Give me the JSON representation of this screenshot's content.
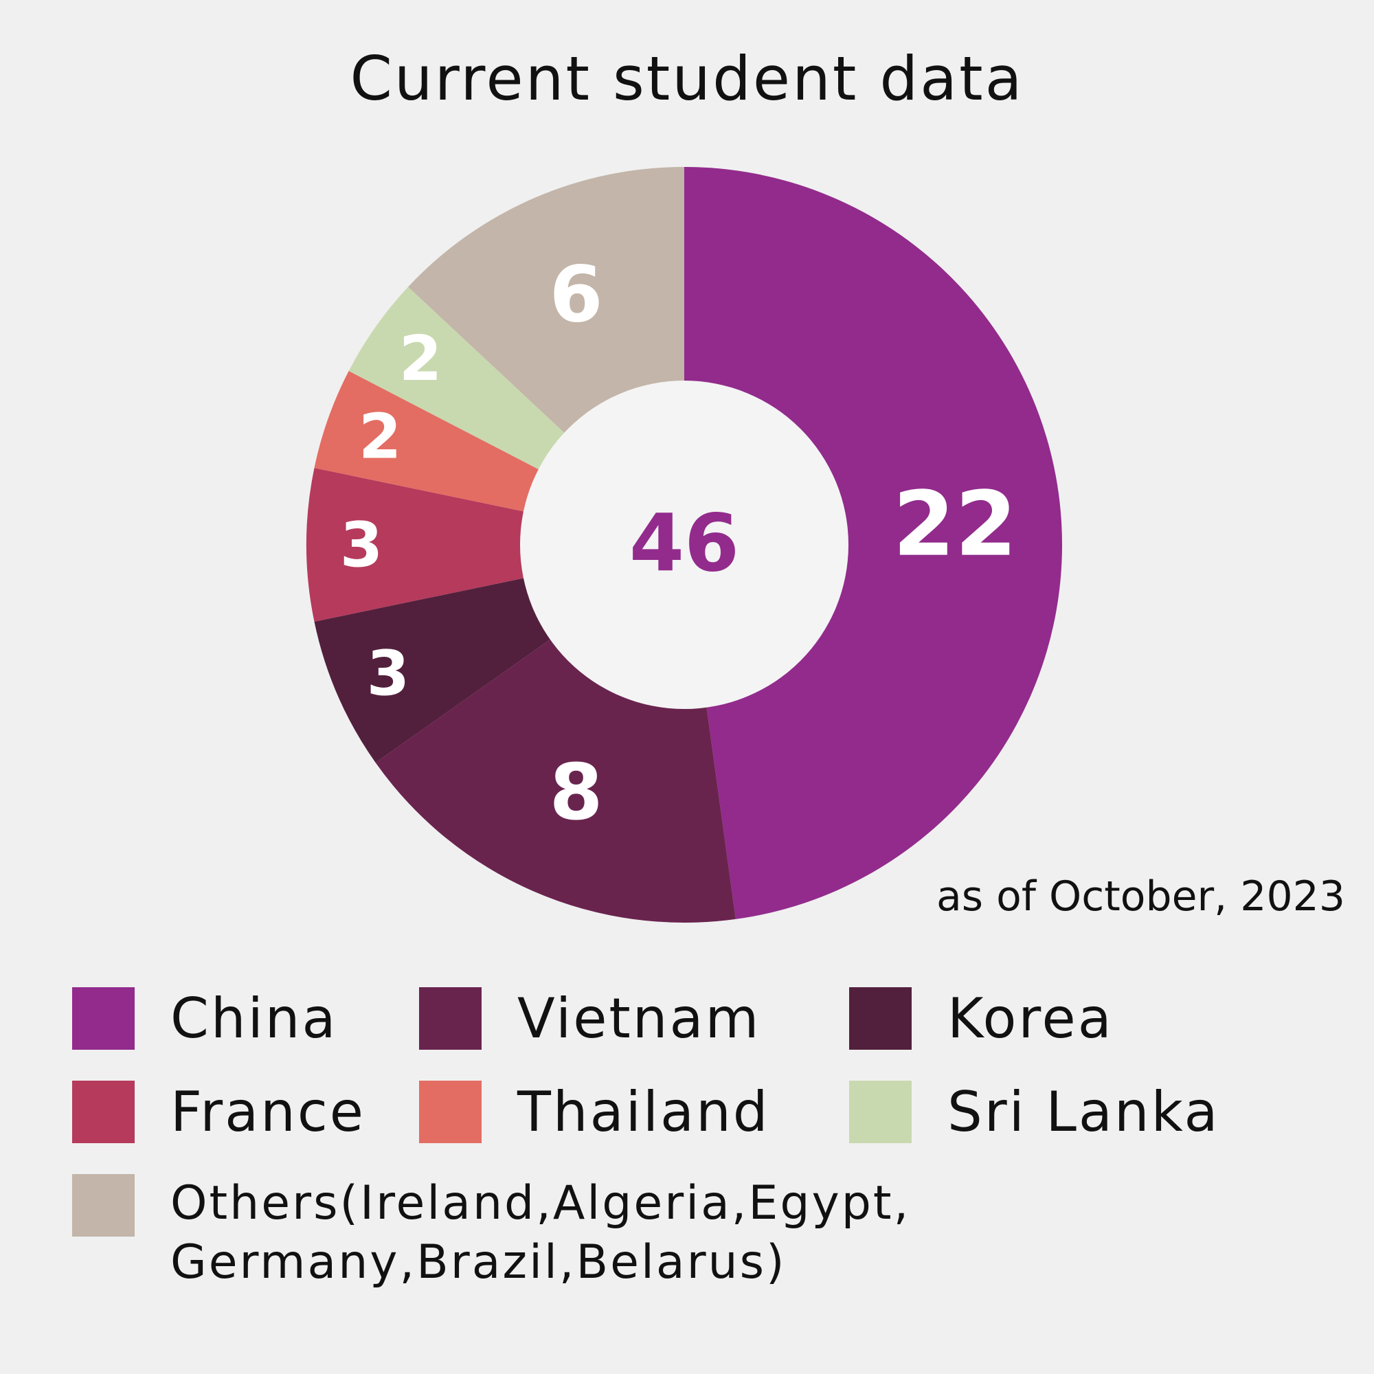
{
  "chart_data": {
    "type": "donut",
    "title": "Current student data",
    "note": "as of October, 2023",
    "total": 46,
    "categories": [
      "China",
      "Vietnam",
      "Korea",
      "France",
      "Thailand",
      "Sri Lanka",
      "Others(Ireland,Algeria,Egypt, Germany,Brazil,Belarus)"
    ],
    "values": [
      22,
      8,
      3,
      3,
      2,
      2,
      6
    ],
    "colors": [
      "#922b8c",
      "#69244e",
      "#52203d",
      "#b53a5c",
      "#e36d63",
      "#c9d9af",
      "#c3b5a9"
    ],
    "center_color": "#922b8c"
  }
}
